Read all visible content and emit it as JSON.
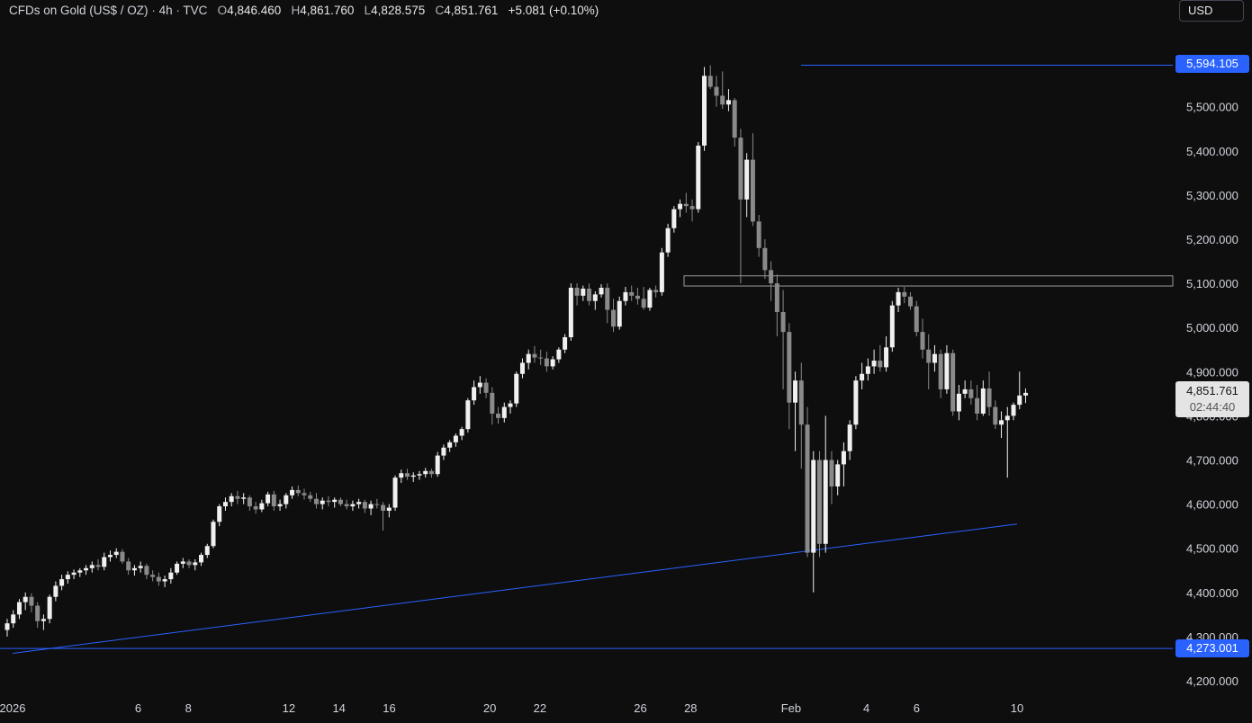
{
  "header": {
    "symbol": "CFDs on Gold (US$ / OZ)",
    "interval": "4h",
    "source": "TVC",
    "open_label": "O",
    "open": "4,846.460",
    "high_label": "H",
    "high": "4,861.760",
    "low_label": "L",
    "low": "4,828.575",
    "close_label": "C",
    "close": "4,851.761",
    "change": "+5.081 (+0.10%)"
  },
  "currency_button": "USD",
  "price_tags": {
    "top_line": "5,594.105",
    "bottom_line": "4,273.001",
    "current_price": "4,851.761",
    "countdown": "02:44:40"
  },
  "colors": {
    "background": "#0e0e0e",
    "candle_up": "#f0f0f0",
    "candle_down": "#8a8a8a",
    "line_blue": "#2962ff",
    "zone_border": "#9a9a9a",
    "axis_text": "#d1d4dc"
  },
  "chart_data": {
    "type": "candlestick",
    "title": "",
    "xlabel": "",
    "ylabel": "",
    "ylim": [
      4160,
      5660
    ],
    "y_ticks": [
      4200,
      4300,
      4400,
      4500,
      4600,
      4700,
      4800,
      4900,
      5000,
      5100,
      5200,
      5300,
      5400,
      5500
    ],
    "y_tick_labels": [
      "4,200.000",
      "4,300.000",
      "4,400.000",
      "4,500.000",
      "4,600.000",
      "4,700.000",
      "4,800.000",
      "4,900.000",
      "5,000.000",
      "5,100.000",
      "5,200.000",
      "5,300.000",
      "5,400.000",
      "5,500.000"
    ],
    "x_tick_labels": [
      "2026",
      "6",
      "8",
      "12",
      "14",
      "16",
      "20",
      "22",
      "26",
      "28",
      "Feb",
      "4",
      "6",
      "10"
    ],
    "x_tick_dates": [
      "2026-01-01",
      "2026-01-06",
      "2026-01-08",
      "2026-01-12",
      "2026-01-14",
      "2026-01-16",
      "2026-01-20",
      "2026-01-22",
      "2026-01-26",
      "2026-01-28",
      "2026-02-01",
      "2026-02-04",
      "2026-02-06",
      "2026-02-10"
    ],
    "horizontal_lines": [
      5594.105,
      4273.001
    ],
    "resistance_zone": [
      5094,
      5117
    ],
    "trendline": {
      "start": [
        "2026-01-01",
        4262
      ],
      "end": [
        "2026-02-10",
        4555
      ]
    },
    "candles_ohlc": [
      [
        4315,
        4340,
        4300,
        4330
      ],
      [
        4330,
        4360,
        4320,
        4350
      ],
      [
        4350,
        4385,
        4340,
        4378
      ],
      [
        4378,
        4400,
        4360,
        4390
      ],
      [
        4390,
        4398,
        4355,
        4370
      ],
      [
        4370,
        4378,
        4320,
        4335
      ],
      [
        4335,
        4350,
        4315,
        4340
      ],
      [
        4340,
        4395,
        4330,
        4390
      ],
      [
        4390,
        4425,
        4380,
        4415
      ],
      [
        4415,
        4440,
        4405,
        4430
      ],
      [
        4430,
        4448,
        4420,
        4440
      ],
      [
        4440,
        4452,
        4430,
        4445
      ],
      [
        4445,
        4455,
        4435,
        4450
      ],
      [
        4450,
        4462,
        4440,
        4455
      ],
      [
        4455,
        4470,
        4445,
        4462
      ],
      [
        4462,
        4475,
        4450,
        4458
      ],
      [
        4458,
        4490,
        4450,
        4480
      ],
      [
        4480,
        4495,
        4470,
        4485
      ],
      [
        4485,
        4500,
        4478,
        4492
      ],
      [
        4492,
        4498,
        4465,
        4470
      ],
      [
        4470,
        4478,
        4440,
        4450
      ],
      [
        4450,
        4462,
        4438,
        4455
      ],
      [
        4455,
        4470,
        4445,
        4460
      ],
      [
        4460,
        4465,
        4430,
        4440
      ],
      [
        4440,
        4450,
        4425,
        4435
      ],
      [
        4435,
        4445,
        4415,
        4425
      ],
      [
        4425,
        4438,
        4412,
        4430
      ],
      [
        4430,
        4455,
        4420,
        4445
      ],
      [
        4445,
        4470,
        4440,
        4465
      ],
      [
        4465,
        4478,
        4455,
        4470
      ],
      [
        4470,
        4475,
        4455,
        4462
      ],
      [
        4462,
        4475,
        4450,
        4468
      ],
      [
        4468,
        4490,
        4460,
        4485
      ],
      [
        4485,
        4510,
        4478,
        4505
      ],
      [
        4505,
        4565,
        4500,
        4560
      ],
      [
        4560,
        4600,
        4550,
        4595
      ],
      [
        4595,
        4615,
        4585,
        4605
      ],
      [
        4605,
        4625,
        4595,
        4618
      ],
      [
        4618,
        4630,
        4600,
        4612
      ],
      [
        4612,
        4625,
        4600,
        4615
      ],
      [
        4615,
        4620,
        4585,
        4595
      ],
      [
        4595,
        4605,
        4578,
        4588
      ],
      [
        4588,
        4610,
        4582,
        4602
      ],
      [
        4602,
        4628,
        4595,
        4622
      ],
      [
        4622,
        4630,
        4585,
        4595
      ],
      [
        4595,
        4610,
        4585,
        4600
      ],
      [
        4600,
        4625,
        4590,
        4620
      ],
      [
        4620,
        4640,
        4612,
        4632
      ],
      [
        4632,
        4642,
        4618,
        4625
      ],
      [
        4625,
        4635,
        4610,
        4620
      ],
      [
        4620,
        4628,
        4605,
        4612
      ],
      [
        4612,
        4625,
        4590,
        4600
      ],
      [
        4600,
        4615,
        4588,
        4608
      ],
      [
        4608,
        4618,
        4595,
        4605
      ],
      [
        4605,
        4615,
        4592,
        4610
      ],
      [
        4610,
        4615,
        4595,
        4600
      ],
      [
        4600,
        4610,
        4588,
        4595
      ],
      [
        4595,
        4608,
        4585,
        4600
      ],
      [
        4600,
        4612,
        4590,
        4605
      ],
      [
        4605,
        4610,
        4580,
        4590
      ],
      [
        4590,
        4608,
        4575,
        4600
      ],
      [
        4600,
        4612,
        4590,
        4598
      ],
      [
        4598,
        4605,
        4540,
        4585
      ],
      [
        4585,
        4600,
        4570,
        4592
      ],
      [
        4592,
        4665,
        4585,
        4660
      ],
      [
        4660,
        4678,
        4648,
        4670
      ],
      [
        4670,
        4680,
        4655,
        4662
      ],
      [
        4662,
        4672,
        4650,
        4665
      ],
      [
        4665,
        4675,
        4655,
        4668
      ],
      [
        4668,
        4682,
        4660,
        4675
      ],
      [
        4675,
        4680,
        4660,
        4668
      ],
      [
        4668,
        4718,
        4662,
        4710
      ],
      [
        4710,
        4735,
        4700,
        4728
      ],
      [
        4728,
        4745,
        4718,
        4740
      ],
      [
        4740,
        4760,
        4730,
        4755
      ],
      [
        4755,
        4775,
        4745,
        4770
      ],
      [
        4770,
        4840,
        4762,
        4835
      ],
      [
        4835,
        4880,
        4825,
        4865
      ],
      [
        4865,
        4890,
        4850,
        4875
      ],
      [
        4875,
        4885,
        4840,
        4852
      ],
      [
        4852,
        4865,
        4780,
        4805
      ],
      [
        4805,
        4820,
        4782,
        4795
      ],
      [
        4795,
        4830,
        4785,
        4820
      ],
      [
        4820,
        4835,
        4805,
        4828
      ],
      [
        4828,
        4900,
        4820,
        4895
      ],
      [
        4895,
        4930,
        4885,
        4920
      ],
      [
        4920,
        4950,
        4905,
        4940
      ],
      [
        4940,
        4958,
        4920,
        4932
      ],
      [
        4932,
        4950,
        4915,
        4930
      ],
      [
        4930,
        4945,
        4900,
        4912
      ],
      [
        4912,
        4935,
        4905,
        4928
      ],
      [
        4928,
        4955,
        4920,
        4950
      ],
      [
        4950,
        4985,
        4942,
        4978
      ],
      [
        4978,
        5100,
        4970,
        5090
      ],
      [
        5090,
        5100,
        5050,
        5072
      ],
      [
        5072,
        5095,
        5060,
        5088
      ],
      [
        5088,
        5100,
        5050,
        5060
      ],
      [
        5060,
        5082,
        5040,
        5075
      ],
      [
        5075,
        5098,
        5068,
        5090
      ],
      [
        5090,
        5100,
        5010,
        5040
      ],
      [
        5040,
        5065,
        4990,
        5002
      ],
      [
        5002,
        5070,
        4995,
        5060
      ],
      [
        5060,
        5092,
        5050,
        5080
      ],
      [
        5080,
        5095,
        5060,
        5072
      ],
      [
        5072,
        5090,
        5052,
        5065
      ],
      [
        5065,
        5092,
        5040,
        5045
      ],
      [
        5045,
        5090,
        5038,
        5085
      ],
      [
        5085,
        5095,
        5068,
        5080
      ],
      [
        5080,
        5180,
        5072,
        5170
      ],
      [
        5170,
        5235,
        5160,
        5225
      ],
      [
        5225,
        5275,
        5215,
        5268
      ],
      [
        5268,
        5290,
        5250,
        5280
      ],
      [
        5280,
        5305,
        5260,
        5275
      ],
      [
        5275,
        5290,
        5240,
        5268
      ],
      [
        5268,
        5420,
        5260,
        5412
      ],
      [
        5412,
        5590,
        5400,
        5570
      ],
      [
        5570,
        5594,
        5540,
        5545
      ],
      [
        5545,
        5570,
        5500,
        5525
      ],
      [
        5525,
        5580,
        5495,
        5505
      ],
      [
        5505,
        5540,
        5490,
        5515
      ],
      [
        5515,
        5520,
        5410,
        5430
      ],
      [
        5430,
        5450,
        5100,
        5290
      ],
      [
        5290,
        5395,
        5250,
        5380
      ],
      [
        5380,
        5440,
        5230,
        5240
      ],
      [
        5240,
        5255,
        5160,
        5180
      ],
      [
        5180,
        5200,
        5110,
        5130
      ],
      [
        5130,
        5150,
        5060,
        5100
      ],
      [
        5100,
        5120,
        4980,
        5035
      ],
      [
        5035,
        5085,
        4860,
        4990
      ],
      [
        4990,
        5010,
        4770,
        4830
      ],
      [
        4830,
        4900,
        4720,
        4880
      ],
      [
        4880,
        4920,
        4680,
        4780
      ],
      [
        4780,
        4820,
        4480,
        4490
      ],
      [
        4490,
        4720,
        4400,
        4700
      ],
      [
        4700,
        4720,
        4480,
        4510
      ],
      [
        4510,
        4800,
        4490,
        4700
      ],
      [
        4700,
        4720,
        4600,
        4640
      ],
      [
        4640,
        4700,
        4620,
        4690
      ],
      [
        4690,
        4740,
        4640,
        4720
      ],
      [
        4720,
        4790,
        4700,
        4780
      ],
      [
        4780,
        4890,
        4770,
        4880
      ],
      [
        4880,
        4920,
        4860,
        4895
      ],
      [
        4895,
        4930,
        4880,
        4912
      ],
      [
        4912,
        4950,
        4895,
        4925
      ],
      [
        4925,
        4960,
        4900,
        4910
      ],
      [
        4910,
        4980,
        4900,
        4955
      ],
      [
        4955,
        5060,
        4945,
        5050
      ],
      [
        5050,
        5090,
        5035,
        5080
      ],
      [
        5080,
        5092,
        5055,
        5070
      ],
      [
        5070,
        5080,
        5040,
        5048
      ],
      [
        5048,
        5060,
        4980,
        4990
      ],
      [
        4990,
        5020,
        4930,
        4950
      ],
      [
        4950,
        4985,
        4860,
        4920
      ],
      [
        4920,
        4960,
        4900,
        4940
      ],
      [
        4940,
        4950,
        4840,
        4860
      ],
      [
        4860,
        4960,
        4850,
        4942
      ],
      [
        4942,
        4950,
        4800,
        4810
      ],
      [
        4810,
        4870,
        4790,
        4850
      ],
      [
        4850,
        4880,
        4840,
        4860
      ],
      [
        4860,
        4880,
        4825,
        4840
      ],
      [
        4840,
        4870,
        4790,
        4805
      ],
      [
        4805,
        4880,
        4800,
        4862
      ],
      [
        4862,
        4900,
        4800,
        4820
      ],
      [
        4820,
        4835,
        4770,
        4780
      ],
      [
        4780,
        4810,
        4750,
        4790
      ],
      [
        4790,
        4820,
        4660,
        4800
      ],
      [
        4800,
        4830,
        4790,
        4825
      ],
      [
        4825,
        4900,
        4815,
        4846
      ],
      [
        4846,
        4862,
        4829,
        4852
      ]
    ]
  }
}
